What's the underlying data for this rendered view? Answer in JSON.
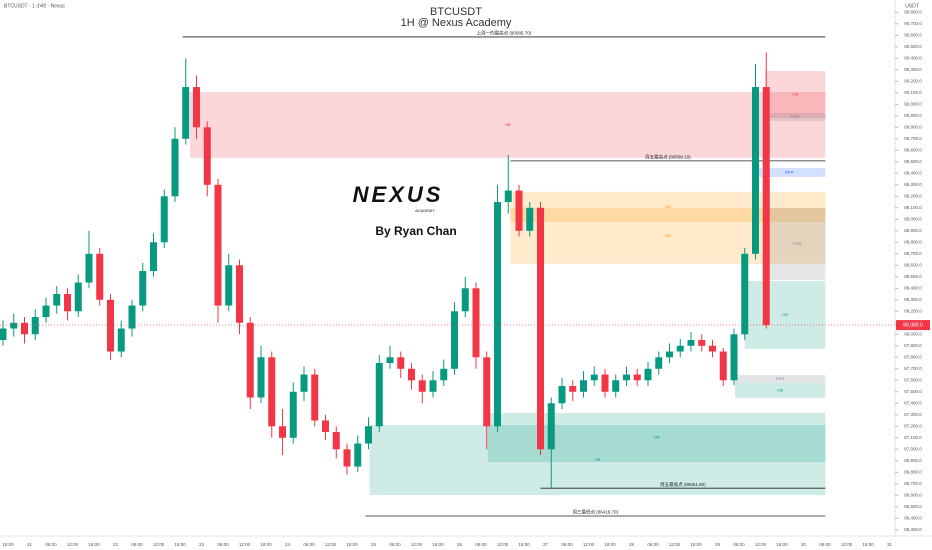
{
  "chart_data": {
    "type": "candlestick",
    "title": "BTCUSDT",
    "subtitle": "1H @ Nexus Academy",
    "header": "BTCUSDT · 1 小时 · Nexus",
    "unit": "USDT",
    "logo": "NEXUS",
    "logo_sub": "ACADEMY",
    "author": "By Ryan Chan",
    "up_color": "#089981",
    "down_color": "#f23645",
    "ylim": [
      86298,
      90907
    ],
    "yticks": [
      {
        "value": 86300,
        "label": "86,300.0"
      },
      {
        "value": 86400,
        "label": "86,400.0"
      },
      {
        "value": 86500,
        "label": "86,500.0"
      },
      {
        "value": 86600,
        "label": "86,600.0"
      },
      {
        "value": 86700,
        "label": "86,700.0"
      },
      {
        "value": 86800,
        "label": "86,800.0"
      },
      {
        "value": 86900,
        "label": "86,900.0"
      },
      {
        "value": 87000,
        "label": "87,000.0"
      },
      {
        "value": 87100,
        "label": "87,100.0"
      },
      {
        "value": 87200,
        "label": "87,200.0"
      },
      {
        "value": 87300,
        "label": "87,300.0"
      },
      {
        "value": 87400,
        "label": "87,400.0"
      },
      {
        "value": 87500,
        "label": "87,500.0"
      },
      {
        "value": 87600,
        "label": "87,600.0"
      },
      {
        "value": 87700,
        "label": "87,700.0"
      },
      {
        "value": 87800,
        "label": "87,800.0"
      },
      {
        "value": 87900,
        "label": "87,900.0"
      },
      {
        "value": 88000,
        "label": "88,000.0"
      },
      {
        "value": 88100,
        "label": "88,100.0"
      },
      {
        "value": 88200,
        "label": "88,200.0"
      },
      {
        "value": 88300,
        "label": "88,300.0"
      },
      {
        "value": 88400,
        "label": "88,400.0"
      },
      {
        "value": 88500,
        "label": "88,500.0"
      },
      {
        "value": 88600,
        "label": "88,600.0"
      },
      {
        "value": 88700,
        "label": "88,700.0"
      },
      {
        "value": 88800,
        "label": "88,800.0"
      },
      {
        "value": 88900,
        "label": "88,900.0"
      },
      {
        "value": 89000,
        "label": "89,000.0"
      },
      {
        "value": 89100,
        "label": "89,100.0"
      },
      {
        "value": 89200,
        "label": "89,200.0"
      },
      {
        "value": 89300,
        "label": "89,300.0"
      },
      {
        "value": 89400,
        "label": "89,400.0"
      },
      {
        "value": 89500,
        "label": "89,500.0"
      },
      {
        "value": 89600,
        "label": "89,600.0"
      },
      {
        "value": 89700,
        "label": "89,700.0"
      },
      {
        "value": 89800,
        "label": "89,800.0"
      },
      {
        "value": 89900,
        "label": "89,900.0"
      },
      {
        "value": 90000,
        "label": "90,000.0"
      },
      {
        "value": 90100,
        "label": "90,100.0"
      },
      {
        "value": 90200,
        "label": "90,200.0"
      },
      {
        "value": 90300,
        "label": "90,300.0"
      },
      {
        "value": 90400,
        "label": "90,400.0"
      },
      {
        "value": 90500,
        "label": "90,500.0"
      },
      {
        "value": 90600,
        "label": "90,600.0"
      },
      {
        "value": 90700,
        "label": "90,700.0"
      },
      {
        "value": 90800,
        "label": "90,800.0"
      }
    ],
    "categories": [
      "18:00",
      "21",
      "06:00",
      "12:00",
      "18:00",
      "22",
      "06:00",
      "12:00",
      "18:00",
      "23",
      "06:00",
      "12:00",
      "18:00",
      "24",
      "06:00",
      "12:00",
      "18:00",
      "25",
      "06:00",
      "12:00",
      "18:00",
      "26",
      "06:00",
      "12:00",
      "18:00",
      "27",
      "06:00",
      "12:00",
      "18:00",
      "28",
      "06:00",
      "12:00",
      "18:00",
      "29",
      "06:00",
      "12:00",
      "18:00",
      "30",
      "06:00",
      "12:00",
      "18:00",
      "31"
    ],
    "candles": [
      [
        87950,
        88120,
        87900,
        88050
      ],
      [
        88050,
        88180,
        87980,
        88100
      ],
      [
        88100,
        88150,
        87920,
        88000
      ],
      [
        88000,
        88220,
        87950,
        88150
      ],
      [
        88150,
        88320,
        88100,
        88250
      ],
      [
        88250,
        88420,
        88180,
        88350
      ],
      [
        88350,
        88400,
        88120,
        88200
      ],
      [
        88200,
        88520,
        88150,
        88450
      ],
      [
        88450,
        88900,
        88400,
        88700
      ],
      [
        88700,
        88750,
        88250,
        88300
      ],
      [
        88300,
        88350,
        87780,
        87850
      ],
      [
        87850,
        88120,
        87800,
        88050
      ],
      [
        88050,
        88300,
        87980,
        88250
      ],
      [
        88250,
        88620,
        88200,
        88550
      ],
      [
        88550,
        88880,
        88500,
        88800
      ],
      [
        88800,
        89260,
        88750,
        89200
      ],
      [
        89200,
        89800,
        89150,
        89700
      ],
      [
        89700,
        90400,
        89650,
        90150
      ],
      [
        90150,
        90250,
        89700,
        89800
      ],
      [
        89800,
        89850,
        89200,
        89300
      ],
      [
        89300,
        89350,
        88100,
        88250
      ],
      [
        88250,
        88700,
        88200,
        88600
      ],
      [
        88600,
        88650,
        88000,
        88100
      ],
      [
        88100,
        88150,
        87350,
        87450
      ],
      [
        87450,
        87900,
        87400,
        87800
      ],
      [
        87800,
        87850,
        87100,
        87200
      ],
      [
        87200,
        87350,
        86950,
        87100
      ],
      [
        87100,
        87580,
        87050,
        87500
      ],
      [
        87500,
        87720,
        87420,
        87650
      ],
      [
        87650,
        87700,
        87200,
        87250
      ],
      [
        87250,
        87300,
        87080,
        87150
      ],
      [
        87150,
        87200,
        86920,
        87000
      ],
      [
        87000,
        87050,
        86780,
        86850
      ],
      [
        86850,
        87120,
        86800,
        87050
      ],
      [
        87050,
        87280,
        87000,
        87200
      ],
      [
        87200,
        87820,
        87150,
        87750
      ],
      [
        87750,
        87900,
        87700,
        87800
      ],
      [
        87800,
        87850,
        87620,
        87700
      ],
      [
        87700,
        87750,
        87520,
        87600
      ],
      [
        87600,
        87650,
        87400,
        87500
      ],
      [
        87500,
        87680,
        87450,
        87600
      ],
      [
        87600,
        87780,
        87550,
        87700
      ],
      [
        87700,
        88280,
        87650,
        88200
      ],
      [
        88200,
        88500,
        88150,
        88400
      ],
      [
        88400,
        88450,
        87700,
        87800
      ],
      [
        87800,
        87850,
        87000,
        87200
      ],
      [
        87200,
        89300,
        87150,
        89150
      ],
      [
        89150,
        89560,
        89050,
        89250
      ],
      [
        89250,
        89300,
        88850,
        88900
      ],
      [
        88900,
        89150,
        88850,
        89100
      ],
      [
        89100,
        89150,
        86950,
        87000
      ],
      [
        87000,
        87450,
        86660,
        87400
      ],
      [
        87400,
        87620,
        87350,
        87550
      ],
      [
        87550,
        87600,
        87420,
        87500
      ],
      [
        87500,
        87680,
        87450,
        87600
      ],
      [
        87600,
        87720,
        87550,
        87650
      ],
      [
        87650,
        87700,
        87450,
        87500
      ],
      [
        87500,
        87650,
        87450,
        87600
      ],
      [
        87600,
        87720,
        87550,
        87650
      ],
      [
        87650,
        87700,
        87550,
        87600
      ],
      [
        87600,
        87760,
        87550,
        87700
      ],
      [
        87700,
        87850,
        87650,
        87800
      ],
      [
        87800,
        87920,
        87750,
        87850
      ],
      [
        87850,
        87960,
        87800,
        87900
      ],
      [
        87900,
        88020,
        87850,
        87950
      ],
      [
        87950,
        88000,
        87850,
        87900
      ],
      [
        87900,
        87950,
        87800,
        87850
      ],
      [
        87850,
        87880,
        87550,
        87600
      ],
      [
        87600,
        88050,
        87560,
        88000
      ],
      [
        88000,
        88750,
        87950,
        88700
      ],
      [
        88700,
        90350,
        88650,
        90150
      ],
      [
        90150,
        90450,
        88050,
        88080
      ]
    ],
    "zones": [
      {
        "label": "OB",
        "top": 90107,
        "bottom": 89534,
        "x": [
          17.4,
          76.5
        ],
        "color": "#f23645"
      },
      {
        "label": "OB",
        "top": 90290,
        "bottom": 89881,
        "x": [
          70.9,
          76.5
        ],
        "color": "#f23645"
      },
      {
        "label": "FVG",
        "top": 89925,
        "bottom": 89855,
        "x": [
          70.9,
          76.5
        ],
        "color": "#787b86"
      },
      {
        "label": "BPR",
        "top": 89447,
        "bottom": 89368,
        "x": [
          69.8,
          76.5
        ],
        "color": "#2962ff"
      },
      {
        "label": "OB",
        "top": 89238,
        "bottom": 88977,
        "x": [
          47.2,
          76.5
        ],
        "color": "#ff9800"
      },
      {
        "label": "OB",
        "top": 89099,
        "bottom": 88612,
        "x": [
          47.2,
          76.5
        ],
        "color": "#ff9800"
      },
      {
        "label": "FVG",
        "top": 89099,
        "bottom": 88473,
        "x": [
          71.3,
          76.5
        ],
        "color": "#787b86"
      },
      {
        "label": "OB",
        "top": 88464,
        "bottom": 87873,
        "x": [
          69,
          76.5
        ],
        "color": "#089981"
      },
      {
        "label": "FVG",
        "top": 87646,
        "bottom": 87577,
        "x": [
          68.1,
          76.5
        ],
        "color": "#787b86"
      },
      {
        "label": "OB",
        "top": 87577,
        "bottom": 87447,
        "x": [
          68.1,
          76.5
        ],
        "color": "#089981"
      },
      {
        "label": "OB",
        "top": 87211,
        "bottom": 86602,
        "x": [
          34.1,
          76.5
        ],
        "color": "#089981"
      },
      {
        "label": "OB",
        "top": 87316,
        "bottom": 86889,
        "x": [
          45.1,
          76.5
        ],
        "color": "#089981"
      }
    ],
    "levels": [
      {
        "label": "上周一的最高点 (90585.70)",
        "price": 90585.7,
        "x": [
          16.7,
          76.5
        ]
      },
      {
        "label": "周五最高点 (89508.10)",
        "price": 89508.1,
        "x": [
          47.2,
          76.5
        ]
      },
      {
        "label": "周五最低点 (86661.80)",
        "price": 86661.8,
        "x": [
          50,
          76.5
        ]
      },
      {
        "label": "周三最低点 (86419.70)",
        "price": 86419.7,
        "x": [
          33.7,
          76.5
        ]
      }
    ],
    "last_price": {
      "value": 88080,
      "label": "88,080.0"
    }
  }
}
